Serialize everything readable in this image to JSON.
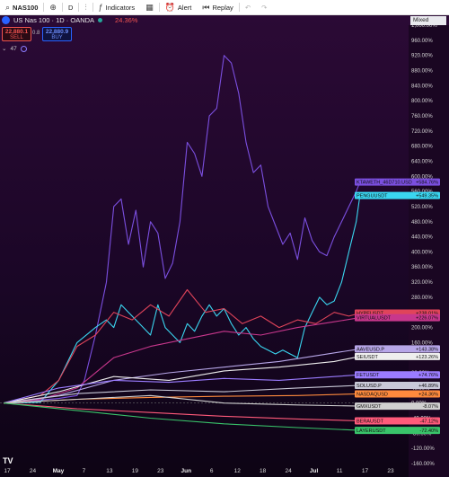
{
  "toolbar": {
    "symbol": "NAS100",
    "interval": "D",
    "indicators_label": "Indicators",
    "alert_label": "Alert",
    "replay_label": "Replay"
  },
  "legend": {
    "title": "US Nas 100 · 1D · OANDA",
    "change": "24.36%"
  },
  "trade": {
    "sell_price": "22,880.1",
    "sell_label": "SELL",
    "buy_price": "22,880.9",
    "buy_label": "BUY",
    "spread": "0.8"
  },
  "indicator_count": "47",
  "scale_mode": "Mixed",
  "colors": {
    "accent": "#2962ff",
    "sell": "#ef5350",
    "background_top": "#2c0a36"
  },
  "chart_data": {
    "type": "line",
    "y_unit": "%",
    "ylim": [
      -160,
      1000
    ],
    "yticks": [
      "1,000.00%",
      "960.00%",
      "920.00%",
      "880.00%",
      "840.00%",
      "800.00%",
      "760.00%",
      "720.00%",
      "680.00%",
      "640.00%",
      "600.00%",
      "560.00%",
      "520.00%",
      "480.00%",
      "440.00%",
      "400.00%",
      "360.00%",
      "320.00%",
      "280.00%",
      "240.00%",
      "200.00%",
      "160.00%",
      "120.00%",
      "80.00%",
      "40.00%",
      "0.00%",
      "-40.00%",
      "-80.00%",
      "-120.00%",
      "-160.00%"
    ],
    "xticks": [
      "17",
      "24",
      "May",
      "7",
      "13",
      "19",
      "23",
      "Jun",
      "6",
      "12",
      "18",
      "24",
      "Jul",
      "11",
      "17",
      "23"
    ],
    "bold_xticks": [
      "May",
      "Jun",
      "Jul"
    ],
    "x_count": 100,
    "series": [
      {
        "name": "KTAWETH_46D710.USD",
        "label": "+584.76%",
        "color": "#7b4fe0",
        "points": [
          [
            0,
            0
          ],
          [
            5,
            5
          ],
          [
            10,
            8
          ],
          [
            15,
            12
          ],
          [
            20,
            20
          ],
          [
            22,
            60
          ],
          [
            25,
            180
          ],
          [
            28,
            320
          ],
          [
            30,
            520
          ],
          [
            32,
            540
          ],
          [
            34,
            420
          ],
          [
            36,
            510
          ],
          [
            38,
            360
          ],
          [
            40,
            480
          ],
          [
            42,
            450
          ],
          [
            44,
            330
          ],
          [
            46,
            370
          ],
          [
            48,
            480
          ],
          [
            50,
            690
          ],
          [
            52,
            660
          ],
          [
            54,
            600
          ],
          [
            56,
            760
          ],
          [
            58,
            780
          ],
          [
            60,
            920
          ],
          [
            62,
            900
          ],
          [
            64,
            820
          ],
          [
            66,
            690
          ],
          [
            68,
            610
          ],
          [
            70,
            630
          ],
          [
            72,
            520
          ],
          [
            74,
            470
          ],
          [
            76,
            420
          ],
          [
            78,
            450
          ],
          [
            80,
            380
          ],
          [
            82,
            490
          ],
          [
            84,
            430
          ],
          [
            86,
            400
          ],
          [
            88,
            390
          ],
          [
            90,
            440
          ],
          [
            92,
            480
          ],
          [
            94,
            520
          ],
          [
            96,
            560
          ],
          [
            97,
            584.76
          ]
        ]
      },
      {
        "name": "PENGUUSDT",
        "label": "+549.35%",
        "color": "#3ad6f0",
        "points": [
          [
            0,
            0
          ],
          [
            10,
            2
          ],
          [
            15,
            60
          ],
          [
            20,
            160
          ],
          [
            25,
            200
          ],
          [
            28,
            220
          ],
          [
            30,
            200
          ],
          [
            32,
            260
          ],
          [
            34,
            240
          ],
          [
            36,
            220
          ],
          [
            38,
            200
          ],
          [
            40,
            180
          ],
          [
            42,
            260
          ],
          [
            44,
            200
          ],
          [
            46,
            180
          ],
          [
            48,
            160
          ],
          [
            50,
            210
          ],
          [
            52,
            190
          ],
          [
            54,
            230
          ],
          [
            56,
            260
          ],
          [
            58,
            230
          ],
          [
            60,
            250
          ],
          [
            62,
            210
          ],
          [
            64,
            180
          ],
          [
            66,
            200
          ],
          [
            68,
            170
          ],
          [
            70,
            150
          ],
          [
            72,
            140
          ],
          [
            74,
            130
          ],
          [
            76,
            140
          ],
          [
            78,
            130
          ],
          [
            80,
            120
          ],
          [
            82,
            200
          ],
          [
            84,
            240
          ],
          [
            86,
            280
          ],
          [
            88,
            260
          ],
          [
            90,
            270
          ],
          [
            92,
            320
          ],
          [
            94,
            400
          ],
          [
            96,
            480
          ],
          [
            97,
            549.35
          ]
        ]
      },
      {
        "name": "HYPEUSDT",
        "label": "+238.01%",
        "color": "#e0445a",
        "points": [
          [
            0,
            0
          ],
          [
            10,
            20
          ],
          [
            15,
            60
          ],
          [
            20,
            150
          ],
          [
            25,
            180
          ],
          [
            30,
            240
          ],
          [
            35,
            220
          ],
          [
            40,
            260
          ],
          [
            45,
            230
          ],
          [
            50,
            300
          ],
          [
            55,
            240
          ],
          [
            60,
            250
          ],
          [
            65,
            210
          ],
          [
            70,
            230
          ],
          [
            75,
            200
          ],
          [
            80,
            220
          ],
          [
            85,
            210
          ],
          [
            90,
            240
          ],
          [
            94,
            230
          ],
          [
            97,
            238.01
          ]
        ]
      },
      {
        "name": "VIRTUALUSDT",
        "label": "+226.07%",
        "color": "#c8378c",
        "points": [
          [
            0,
            0
          ],
          [
            10,
            10
          ],
          [
            20,
            40
          ],
          [
            30,
            120
          ],
          [
            40,
            150
          ],
          [
            50,
            170
          ],
          [
            60,
            190
          ],
          [
            70,
            180
          ],
          [
            80,
            200
          ],
          [
            90,
            215
          ],
          [
            97,
            226.07
          ]
        ]
      },
      {
        "name": "AAVEUSD.P",
        "label": "+143.38%",
        "color": "#b7a6e8",
        "points": [
          [
            0,
            0
          ],
          [
            15,
            20
          ],
          [
            30,
            60
          ],
          [
            45,
            80
          ],
          [
            60,
            95
          ],
          [
            75,
            110
          ],
          [
            85,
            125
          ],
          [
            97,
            143.38
          ]
        ]
      },
      {
        "name": "SEIUSDT",
        "label": "+123.26%",
        "color": "#eeeeee",
        "points": [
          [
            0,
            0
          ],
          [
            15,
            30
          ],
          [
            30,
            70
          ],
          [
            45,
            60
          ],
          [
            60,
            85
          ],
          [
            75,
            95
          ],
          [
            90,
            110
          ],
          [
            97,
            123.26
          ]
        ]
      },
      {
        "name": "FETUSDT",
        "label": "+74.76%",
        "color": "#9b7cff",
        "points": [
          [
            0,
            0
          ],
          [
            15,
            40
          ],
          [
            30,
            60
          ],
          [
            45,
            55
          ],
          [
            60,
            65
          ],
          [
            75,
            60
          ],
          [
            90,
            70
          ],
          [
            97,
            74.76
          ]
        ]
      },
      {
        "name": "SOLUSD.P",
        "label": "+46.89%",
        "color": "#c9c9d8",
        "points": [
          [
            0,
            0
          ],
          [
            20,
            25
          ],
          [
            40,
            35
          ],
          [
            60,
            30
          ],
          [
            80,
            40
          ],
          [
            97,
            46.89
          ]
        ]
      },
      {
        "name": "NASDAQUSD",
        "label": "+24.36%",
        "color": "#ff8a3d",
        "points": [
          [
            0,
            0
          ],
          [
            20,
            10
          ],
          [
            40,
            15
          ],
          [
            60,
            18
          ],
          [
            80,
            20
          ],
          [
            97,
            24.36
          ]
        ]
      },
      {
        "name": "GMXUSDT",
        "label": "-8.07%",
        "color": "#d0d0d0",
        "points": [
          [
            0,
            0
          ],
          [
            20,
            10
          ],
          [
            40,
            20
          ],
          [
            60,
            0
          ],
          [
            80,
            -5
          ],
          [
            97,
            -8.07
          ]
        ]
      },
      {
        "name": "BERAUSDT",
        "label": "-47.12%",
        "color": "#ff5a7a",
        "points": [
          [
            0,
            0
          ],
          [
            20,
            -15
          ],
          [
            40,
            -25
          ],
          [
            60,
            -35
          ],
          [
            80,
            -42
          ],
          [
            97,
            -47.12
          ]
        ]
      },
      {
        "name": "LAYERUSDT",
        "label": "-72.40%",
        "color": "#39c46a",
        "points": [
          [
            0,
            0
          ],
          [
            20,
            -20
          ],
          [
            40,
            -40
          ],
          [
            60,
            -55
          ],
          [
            80,
            -65
          ],
          [
            97,
            -72.4
          ]
        ]
      }
    ]
  }
}
